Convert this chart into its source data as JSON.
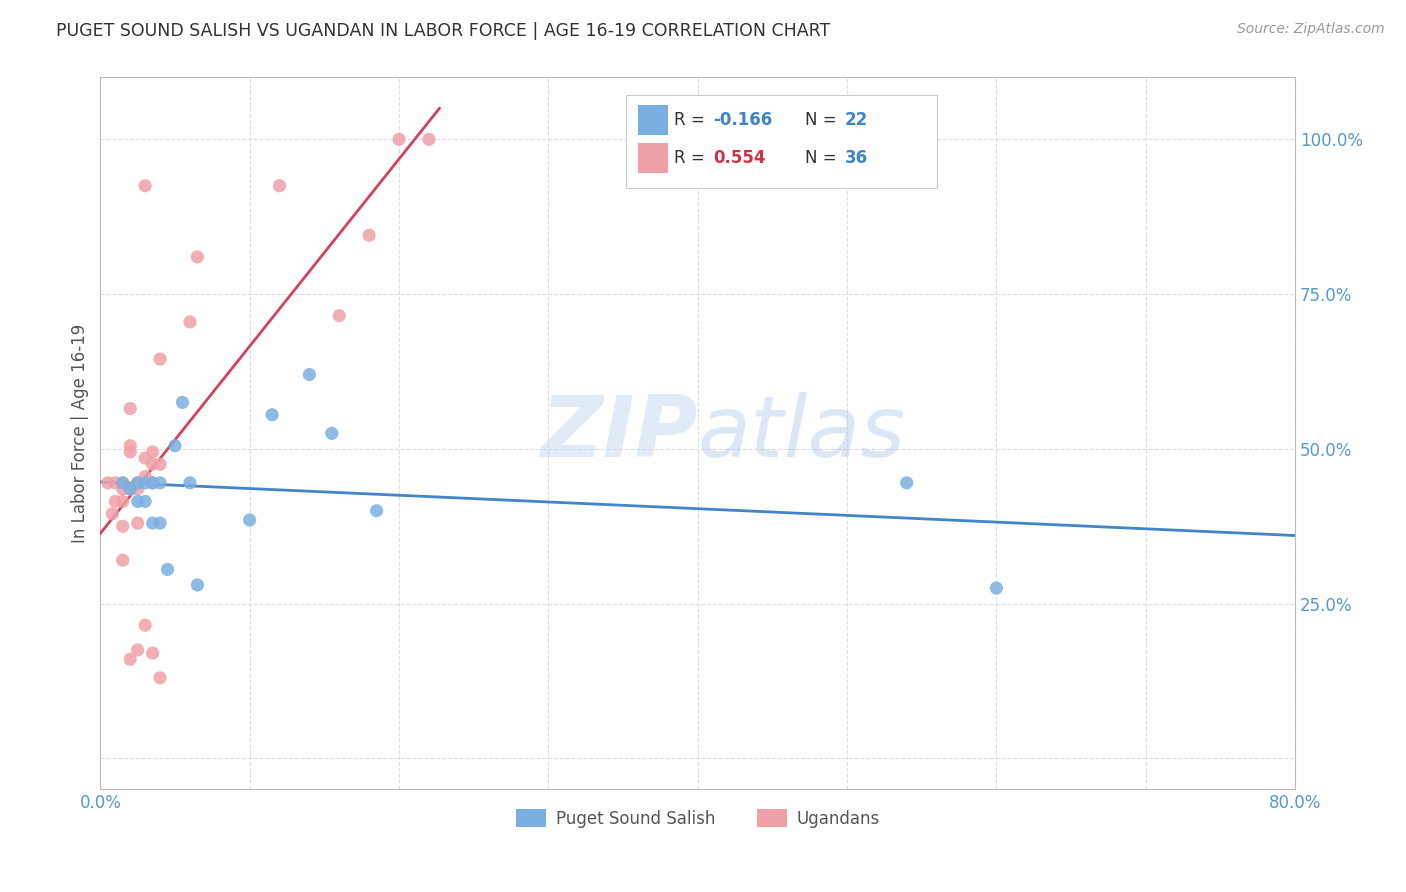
{
  "title": "PUGET SOUND SALISH VS UGANDAN IN LABOR FORCE | AGE 16-19 CORRELATION CHART",
  "source": "Source: ZipAtlas.com",
  "ylabel": "In Labor Force | Age 16-19",
  "xlim": [
    0.0,
    0.8
  ],
  "ylim": [
    -0.05,
    1.1
  ],
  "ytick_vals": [
    0.0,
    0.25,
    0.5,
    0.75,
    1.0
  ],
  "ytick_labels": [
    "",
    "25.0%",
    "50.0%",
    "75.0%",
    "100.0%"
  ],
  "xtick_vals": [
    0.0,
    0.1,
    0.2,
    0.3,
    0.4,
    0.5,
    0.6,
    0.7,
    0.8
  ],
  "xtick_labels": [
    "0.0%",
    "",
    "",
    "",
    "",
    "",
    "",
    "",
    "80.0%"
  ],
  "blue_scatter_color": "#7ab0e0",
  "pink_scatter_color": "#f0a0a8",
  "blue_line_color": "#4285c8",
  "pink_line_color": "#d44060",
  "blue_text_color": "#3d85c8",
  "pink_text_color": "#cc3344",
  "n_text_color": "#3d85c8",
  "tick_color": "#5599cc",
  "grid_color": "#dddddd",
  "axis_color": "#bbbbbb",
  "title_color": "#333333",
  "source_color": "#999999",
  "ylabel_color": "#555555",
  "r_blue": -0.166,
  "n_blue": 22,
  "r_pink": 0.554,
  "n_pink": 36,
  "blue_scatter_x": [
    0.015,
    0.02,
    0.025,
    0.025,
    0.03,
    0.03,
    0.035,
    0.035,
    0.04,
    0.04,
    0.045,
    0.05,
    0.055,
    0.06,
    0.065,
    0.1,
    0.115,
    0.14,
    0.155,
    0.185,
    0.54,
    0.6
  ],
  "blue_scatter_y": [
    0.445,
    0.435,
    0.445,
    0.415,
    0.445,
    0.415,
    0.445,
    0.38,
    0.445,
    0.38,
    0.305,
    0.505,
    0.575,
    0.445,
    0.28,
    0.385,
    0.555,
    0.62,
    0.525,
    0.4,
    0.445,
    0.275
  ],
  "pink_scatter_x": [
    0.005,
    0.008,
    0.01,
    0.01,
    0.015,
    0.015,
    0.015,
    0.015,
    0.015,
    0.02,
    0.02,
    0.02,
    0.02,
    0.02,
    0.025,
    0.025,
    0.025,
    0.025,
    0.03,
    0.03,
    0.03,
    0.03,
    0.035,
    0.035,
    0.035,
    0.035,
    0.04,
    0.04,
    0.04,
    0.06,
    0.065,
    0.12,
    0.16,
    0.18,
    0.2,
    0.22
  ],
  "pink_scatter_y": [
    0.445,
    0.395,
    0.445,
    0.415,
    0.445,
    0.435,
    0.415,
    0.375,
    0.32,
    0.565,
    0.505,
    0.495,
    0.435,
    0.16,
    0.445,
    0.435,
    0.38,
    0.175,
    0.925,
    0.485,
    0.455,
    0.215,
    0.495,
    0.475,
    0.445,
    0.17,
    0.645,
    0.475,
    0.13,
    0.705,
    0.81,
    0.925,
    0.715,
    0.845,
    1.0,
    1.0
  ],
  "watermark_zip": "ZIP",
  "watermark_atlas": "atlas",
  "marker_size": 90,
  "bottom_legend_labels": [
    "Puget Sound Salish",
    "Ugandans"
  ]
}
